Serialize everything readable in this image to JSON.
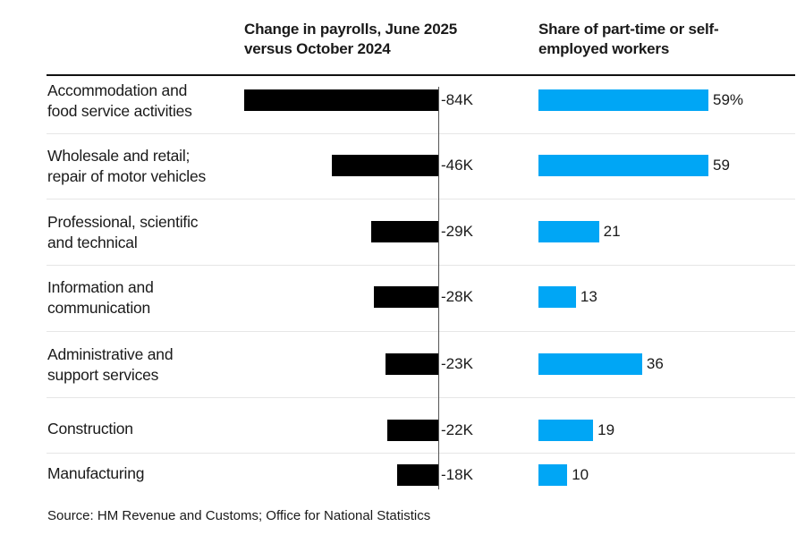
{
  "chart_data": {
    "type": "bar",
    "columns": [
      {
        "title": "Change in payrolls, June 2025 versus October 2024",
        "unit": "K"
      },
      {
        "title": "Share of part-time or self-employed workers",
        "unit": "%"
      }
    ],
    "categories": [
      "Accommodation and food service activities",
      "Wholesale and retail; repair of motor vehicles",
      "Professional, scientific and technical",
      "Information and communication",
      "Administrative and support services",
      "Construction",
      "Manufacturing"
    ],
    "series": [
      {
        "values": [
          -84,
          -46,
          -29,
          -28,
          -23,
          -22,
          -18
        ],
        "labels": [
          "-84K",
          "-46K",
          "-29K",
          "-28K",
          "-23K",
          "-22K",
          "-18K"
        ],
        "color": "#000000"
      },
      {
        "values": [
          59,
          59,
          21,
          13,
          36,
          19,
          10
        ],
        "labels": [
          "59%",
          "59",
          "21",
          "13",
          "36",
          "19",
          "10"
        ],
        "color": "#00a6f5"
      }
    ],
    "source": "Source: HM Revenue and Customs; Office for National Statistics"
  },
  "rows": [
    {
      "line1": "Accommodation and",
      "line2": "food service activities"
    },
    {
      "line1": "Wholesale and retail;",
      "line2": "repair of motor vehicles"
    },
    {
      "line1": "Professional, scientific",
      "line2": "and technical"
    },
    {
      "line1": "Information and",
      "line2": "communication"
    },
    {
      "line1": "Administrative and",
      "line2": "support services"
    },
    {
      "line1": "Construction",
      "line2": ""
    },
    {
      "line1": "Manufacturing",
      "line2": ""
    }
  ],
  "headers": {
    "payroll_line1": "Change in payrolls, June 2025",
    "payroll_line2": "versus October 2024",
    "share_line1": "Share of part-time or self-",
    "share_line2": "employed workers"
  }
}
